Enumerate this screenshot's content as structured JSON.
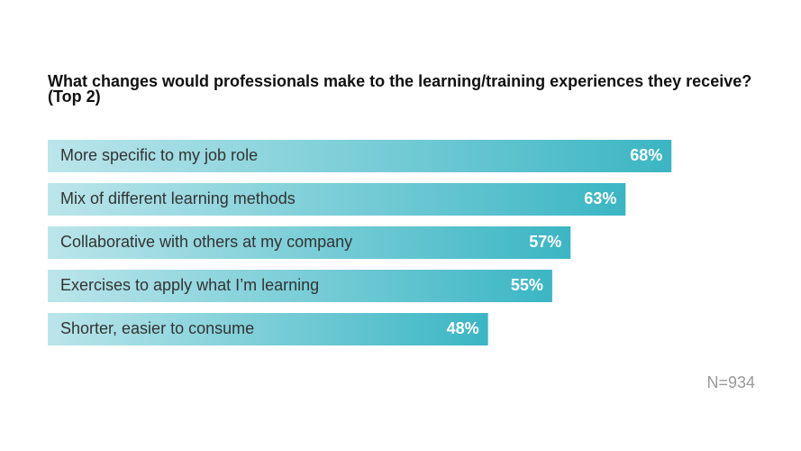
{
  "chart_data": {
    "type": "bar",
    "orientation": "horizontal",
    "title": "What changes would professionals make to the learning/training experiences they receive? (Top 2)",
    "categories": [
      "More specific to my job role",
      "Mix of different learning methods",
      "Collaborative with  others at my company",
      "Exercises to apply what I’m learning",
      "Shorter, easier to consume"
    ],
    "values": [
      68,
      63,
      57,
      55,
      48
    ],
    "value_labels": [
      "68%",
      "63%",
      "57%",
      "55%",
      "48%"
    ],
    "color": "#3bb6c4",
    "note": "N=934"
  }
}
